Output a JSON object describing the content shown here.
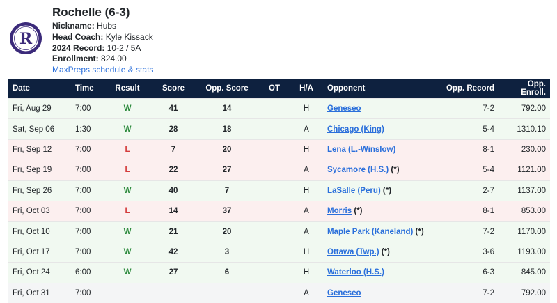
{
  "team": {
    "title": "Rochelle (6-3)",
    "nickname_label": "Nickname:",
    "nickname": "Hubs",
    "coach_label": "Head Coach:",
    "coach": "Kyle Kissack",
    "record_label": "2024 Record:",
    "record": "10-2 / 5A",
    "enrollment_label": "Enrollment:",
    "enrollment": "824.00",
    "link_text": "MaxPreps schedule & stats"
  },
  "colors": {
    "header_bg": "#0e213f",
    "win": "#2e8b3e",
    "loss": "#d43c3c",
    "link": "#2a6fdb",
    "logo": "#3b2a7a"
  },
  "columns": [
    "Date",
    "Time",
    "Result",
    "Score",
    "Opp. Score",
    "OT",
    "H/A",
    "Opponent",
    "Opp. Record",
    "Opp. Enroll."
  ],
  "games": [
    {
      "date": "Fri, Aug 29",
      "time": "7:00",
      "result": "W",
      "score": "41",
      "opp_score": "14",
      "ot": "",
      "ha": "H",
      "opponent": "Geneseo",
      "star": "",
      "opp_record": "7-2",
      "opp_enroll": "792.00"
    },
    {
      "date": "Sat, Sep 06",
      "time": "1:30",
      "result": "W",
      "score": "28",
      "opp_score": "18",
      "ot": "",
      "ha": "A",
      "opponent": "Chicago (King)",
      "star": "",
      "opp_record": "5-4",
      "opp_enroll": "1310.10"
    },
    {
      "date": "Fri, Sep 12",
      "time": "7:00",
      "result": "L",
      "score": "7",
      "opp_score": "20",
      "ot": "",
      "ha": "H",
      "opponent": "Lena (L.-Winslow)",
      "star": "",
      "opp_record": "8-1",
      "opp_enroll": "230.00"
    },
    {
      "date": "Fri, Sep 19",
      "time": "7:00",
      "result": "L",
      "score": "22",
      "opp_score": "27",
      "ot": "",
      "ha": "A",
      "opponent": "Sycamore (H.S.)",
      "star": "(*)",
      "opp_record": "5-4",
      "opp_enroll": "1121.00"
    },
    {
      "date": "Fri, Sep 26",
      "time": "7:00",
      "result": "W",
      "score": "40",
      "opp_score": "7",
      "ot": "",
      "ha": "H",
      "opponent": "LaSalle (Peru)",
      "star": "(*)",
      "opp_record": "2-7",
      "opp_enroll": "1137.00"
    },
    {
      "date": "Fri, Oct 03",
      "time": "7:00",
      "result": "L",
      "score": "14",
      "opp_score": "37",
      "ot": "",
      "ha": "A",
      "opponent": "Morris",
      "star": "(*)",
      "opp_record": "8-1",
      "opp_enroll": "853.00"
    },
    {
      "date": "Fri, Oct 10",
      "time": "7:00",
      "result": "W",
      "score": "21",
      "opp_score": "20",
      "ot": "",
      "ha": "A",
      "opponent": "Maple Park (Kaneland)",
      "star": "(*)",
      "opp_record": "7-2",
      "opp_enroll": "1170.00"
    },
    {
      "date": "Fri, Oct 17",
      "time": "7:00",
      "result": "W",
      "score": "42",
      "opp_score": "3",
      "ot": "",
      "ha": "H",
      "opponent": "Ottawa (Twp.)",
      "star": "(*)",
      "opp_record": "3-6",
      "opp_enroll": "1193.00"
    },
    {
      "date": "Fri, Oct 24",
      "time": "6:00",
      "result": "W",
      "score": "27",
      "opp_score": "6",
      "ot": "",
      "ha": "H",
      "opponent": "Waterloo (H.S.)",
      "star": "",
      "opp_record": "6-3",
      "opp_enroll": "845.00"
    },
    {
      "date": "Fri, Oct 31",
      "time": "7:00",
      "result": "",
      "score": "",
      "opp_score": "",
      "ot": "",
      "ha": "A",
      "opponent": "Geneseo",
      "star": "",
      "opp_record": "7-2",
      "opp_enroll": "792.00"
    }
  ]
}
